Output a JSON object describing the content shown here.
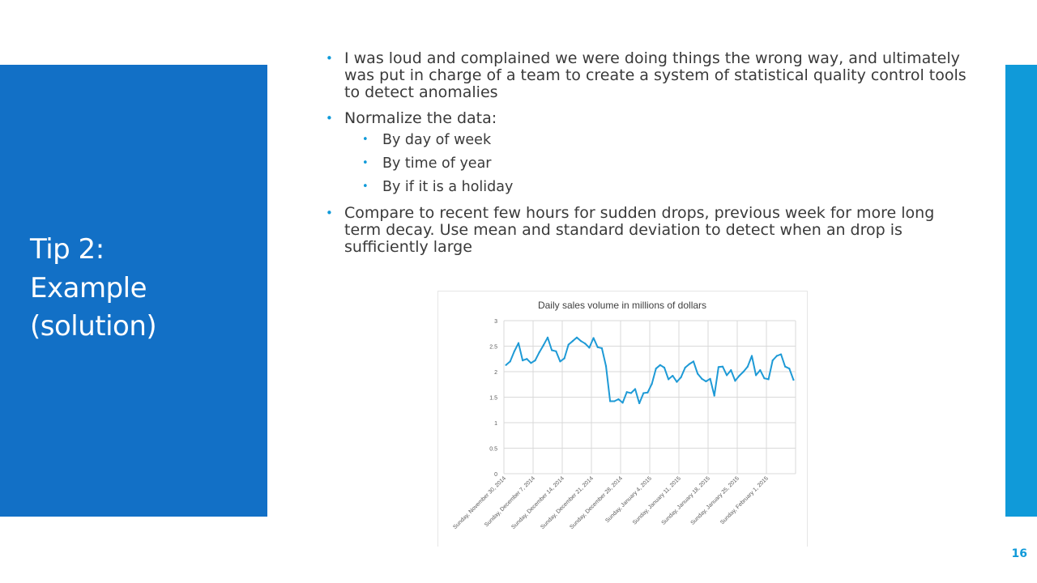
{
  "slide": {
    "title_lines": [
      "Tip 2:",
      "Example",
      "(solution)"
    ],
    "page_number": "16",
    "accent_color": "#1270c6",
    "right_bar_color": "#109ad9"
  },
  "bullets": {
    "b1": "I was loud and complained we were doing things the wrong way, and ultimately was put in charge of a team to create a system of statistical quality control tools to detect anomalies",
    "b2": "Normalize the data:",
    "b2_sub": [
      "By day of week",
      "By time of year",
      "By if it is a holiday"
    ],
    "b3": "Compare to recent few hours for sudden drops, previous week for more long term decay. Use mean and standard deviation to detect when an drop is sufficiently large"
  },
  "chart_data": {
    "type": "line",
    "title": "Daily sales volume in millions of dollars",
    "xlabel": "",
    "ylabel": "",
    "ylim": [
      0,
      3
    ],
    "yticks": [
      "0",
      "0.5",
      "1",
      "1.5",
      "2",
      "2.5",
      "3"
    ],
    "grid": true,
    "line_color": "#1e9ad6",
    "x_tick_labels": [
      "Sunday, November 30, 2014",
      "Sunday, December 7, 2014",
      "Sunday, December 14, 2014",
      "Sunday, December 21, 2014",
      "Sunday, December 28, 2014",
      "Sunday, January 4, 2015",
      "Sunday, January 11, 2015",
      "Sunday, January 18, 2015",
      "Sunday, January 25, 2015",
      "Sunday, February 1, 2015"
    ],
    "series": [
      {
        "values": [
          2.13,
          2.2,
          2.4,
          2.56,
          2.22,
          2.25,
          2.17,
          2.22,
          2.38,
          2.52,
          2.67,
          2.42,
          2.4,
          2.2,
          2.26,
          2.53,
          2.6,
          2.67,
          2.6,
          2.55,
          2.47,
          2.66,
          2.48,
          2.46,
          2.11,
          1.42,
          1.42,
          1.46,
          1.39,
          1.6,
          1.58,
          1.66,
          1.38,
          1.58,
          1.59,
          1.76,
          2.06,
          2.13,
          2.08,
          1.85,
          1.92,
          1.8,
          1.89,
          2.08,
          2.15,
          2.2,
          1.96,
          1.86,
          1.81,
          1.86,
          1.53,
          2.09,
          2.1,
          1.93,
          2.03,
          1.82,
          1.92,
          2.0,
          2.1,
          2.31,
          1.93,
          2.03,
          1.87,
          1.85,
          2.22,
          2.31,
          2.34,
          2.1,
          2.06,
          1.84
        ]
      }
    ]
  }
}
